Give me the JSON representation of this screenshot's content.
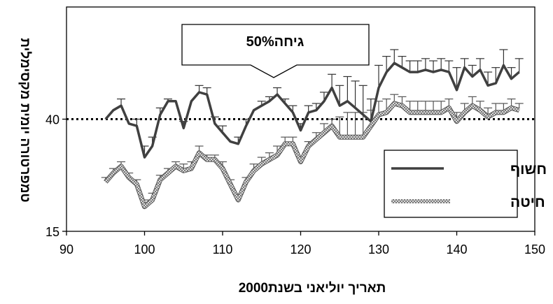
{
  "chart_data": {
    "type": "line",
    "xlabel": "תאריך יוליאני בשנת2000",
    "ylabel": "טמפרטורה יומית מקסימלית",
    "xlim": [
      90,
      150
    ],
    "ylim": [
      15,
      65
    ],
    "x_ticks": [
      90,
      100,
      110,
      120,
      130,
      140,
      150
    ],
    "y_ticks": [
      15,
      40
    ],
    "reference_line": {
      "y": 40,
      "style": "dotted"
    },
    "annotation": {
      "text": "50%גיחה",
      "x": 117
    },
    "legend_position": "bottom-right",
    "grid": false,
    "series": [
      {
        "name": "חשוף",
        "color": "#404040",
        "style": "solid",
        "x": [
          95,
          96,
          97,
          98,
          99,
          100,
          101,
          102,
          103,
          104,
          105,
          106,
          107,
          108,
          109,
          110,
          111,
          112,
          113,
          114,
          115,
          116,
          117,
          118,
          119,
          120,
          121,
          122,
          123,
          124,
          125,
          126,
          127,
          128,
          129,
          130,
          131,
          132,
          133,
          134,
          135,
          136,
          137,
          138,
          139,
          140,
          141,
          142,
          143,
          144,
          145,
          146,
          147,
          148
        ],
        "y": [
          40,
          42,
          43,
          39,
          38.5,
          31.5,
          34,
          41,
          44,
          44,
          38,
          44,
          46,
          45.5,
          39,
          37,
          35,
          34.5,
          38.5,
          42,
          43,
          44,
          45.5,
          43.5,
          41.5,
          37.5,
          41.5,
          42,
          44,
          47,
          43,
          44,
          42.5,
          41,
          39.5,
          47,
          50.5,
          52.5,
          51.5,
          50.5,
          50.5,
          51,
          50.5,
          51,
          50.5,
          46.5,
          51.5,
          49.5,
          51,
          47.5,
          48,
          52,
          49,
          50.5
        ],
        "error_plus": [
          0,
          0,
          1.5,
          0,
          1.5,
          2.5,
          2,
          1.5,
          0.5,
          0,
          1.5,
          0,
          1.5,
          1.5,
          1.5,
          1.5,
          0,
          1.5,
          1.5,
          0,
          1,
          1,
          1.5,
          1,
          1.5,
          1.5,
          1.5,
          1.5,
          2,
          3,
          4.5,
          5.5,
          6,
          6.5,
          5,
          5,
          3.5,
          3,
          2.5,
          2.5,
          2.5,
          2.5,
          2.5,
          2.5,
          2.5,
          5,
          2,
          2.5,
          2.5,
          3,
          3.5,
          3.5,
          2.5,
          3
        ]
      },
      {
        "name": "חיטה",
        "color": "#9a9a9a",
        "style": "hatched",
        "x": [
          95,
          96,
          97,
          98,
          99,
          100,
          101,
          102,
          103,
          104,
          105,
          106,
          107,
          108,
          109,
          110,
          111,
          112,
          113,
          114,
          115,
          116,
          117,
          118,
          119,
          120,
          121,
          122,
          123,
          124,
          125,
          126,
          127,
          128,
          129,
          130,
          131,
          132,
          133,
          134,
          135,
          136,
          137,
          138,
          139,
          140,
          141,
          142,
          143,
          144,
          145,
          146,
          147,
          148
        ],
        "y": [
          26,
          28,
          29.5,
          27,
          25.5,
          20.5,
          22,
          26.5,
          28,
          29.5,
          28.5,
          29,
          32.5,
          31,
          31,
          29,
          25.5,
          22,
          26,
          28.5,
          30,
          31,
          32,
          34.5,
          34.5,
          30.5,
          34,
          35.5,
          37,
          38.5,
          36,
          36,
          36,
          36,
          38.5,
          41,
          41.5,
          43.5,
          43,
          41.5,
          41.5,
          41.5,
          41.5,
          41.5,
          42.5,
          39.5,
          41.5,
          43,
          42,
          40.5,
          41.5,
          41.5,
          42.5,
          42
        ],
        "error_plus": [
          1,
          1,
          1,
          1,
          1,
          1.5,
          1.5,
          1,
          1,
          1,
          1.5,
          1.5,
          1.5,
          1,
          1,
          1.5,
          1,
          1,
          1,
          1.5,
          1.5,
          1.5,
          2,
          1.5,
          1.5,
          1,
          1,
          1.5,
          2,
          1.5,
          4.5,
          5.5,
          5.5,
          5.5,
          3.5,
          3,
          3,
          2,
          2,
          2.5,
          2.5,
          2.5,
          2.5,
          2.5,
          2,
          2,
          2,
          2,
          2,
          2,
          2,
          2,
          2,
          1.5
        ]
      }
    ]
  }
}
